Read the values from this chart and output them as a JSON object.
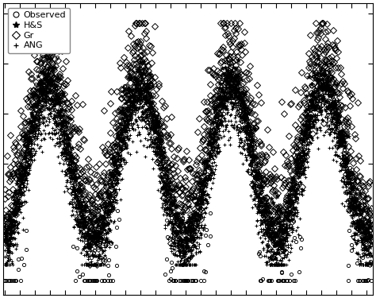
{
  "legend_labels": [
    "Observed",
    "H&S",
    "Gr",
    "ANG"
  ],
  "background_color": "#ffffff",
  "n_years": 4,
  "n_days": 365,
  "seed": 42,
  "obs_marker": "o",
  "hs_marker": "*",
  "gr_marker": "D",
  "ang_marker": "+",
  "markersize_obs": 3.5,
  "markersize_hs": 4.5,
  "markersize_gr": 4.5,
  "markersize_ang": 4.5,
  "marker_color": "black",
  "legend_fontsize": 8,
  "legend_loc": "upper left"
}
